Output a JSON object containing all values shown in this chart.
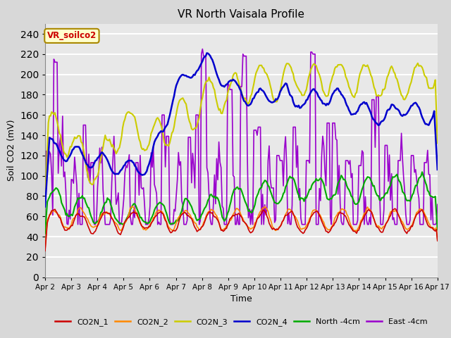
{
  "title": "VR North Vaisala Profile",
  "xlabel": "Time",
  "ylabel": "Soil CO2 (mV)",
  "ylim": [
    0,
    250
  ],
  "yticks": [
    0,
    20,
    40,
    60,
    80,
    100,
    120,
    140,
    160,
    180,
    200,
    220,
    240
  ],
  "x_tick_labels": [
    "Apr 2",
    "Apr 3",
    "Apr 4",
    "Apr 5",
    "Apr 6",
    "Apr 7",
    "Apr 8",
    "Apr 9",
    "Apr 10",
    "Apr 11",
    "Apr 12",
    "Apr 13",
    "Apr 14",
    "Apr 15",
    "Apr 16",
    "Apr 17"
  ],
  "x_tick_positions": [
    0,
    1,
    2,
    3,
    4,
    5,
    6,
    7,
    8,
    9,
    10,
    11,
    12,
    13,
    14,
    15
  ],
  "annotation_text": "VR_soilco2",
  "annotation_color": "#cc0000",
  "annotation_bg": "#ffffcc",
  "annotation_border": "#aa8800",
  "fig_bg": "#d8d8d8",
  "plot_bg": "#e8e8e8",
  "grid_color": "#ffffff",
  "series": {
    "CO2N_1": {
      "color": "#cc0000",
      "lw": 1.2
    },
    "CO2N_2": {
      "color": "#ff8800",
      "lw": 1.2
    },
    "CO2N_3": {
      "color": "#cccc00",
      "lw": 1.5
    },
    "CO2N_4": {
      "color": "#0000cc",
      "lw": 1.8
    },
    "North -4cm": {
      "color": "#00aa00",
      "lw": 1.5
    },
    "East -4cm": {
      "color": "#9900cc",
      "lw": 1.2
    }
  },
  "legend_items": [
    "CO2N_1",
    "CO2N_2",
    "CO2N_3",
    "CO2N_4",
    "North -4cm",
    "East -4cm"
  ]
}
